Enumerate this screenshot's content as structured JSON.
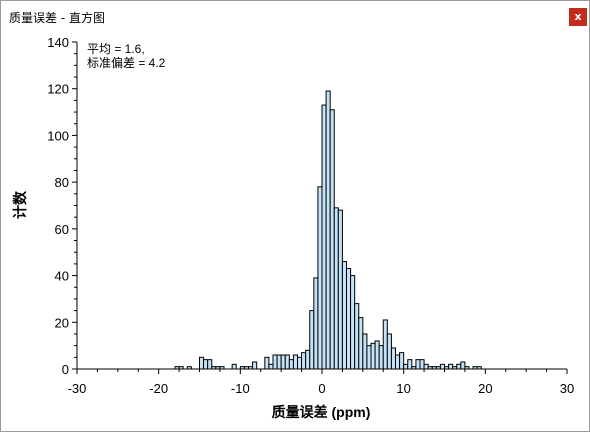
{
  "window": {
    "title": "质量误差 - 直方图",
    "close_label": "x",
    "close_color": "#c42b1c"
  },
  "chart_data": {
    "type": "bar",
    "xlabel": "质量误差 (ppm)",
    "ylabel": "计数",
    "annotation_lines": [
      "平均 = 1.6,",
      "标准偏差 = 4.2"
    ],
    "xlim": [
      -30,
      30
    ],
    "ylim": [
      0,
      140
    ],
    "x_ticks": [
      -30,
      -20,
      -10,
      0,
      10,
      20,
      30
    ],
    "x_tick_labels": [
      "-30",
      "-20",
      "-10",
      "0",
      "10",
      "20",
      "30"
    ],
    "y_ticks": [
      0,
      20,
      40,
      60,
      80,
      100,
      120,
      140
    ],
    "y_tick_labels": [
      "0",
      "20",
      "40",
      "60",
      "80",
      "100",
      "120",
      "140"
    ],
    "bin_width": 0.5,
    "bar_fill": "#c5e3f7",
    "bar_stroke": "#000000",
    "bins": [
      {
        "x": -18,
        "count": 1
      },
      {
        "x": -17.5,
        "count": 1
      },
      {
        "x": -16.5,
        "count": 1
      },
      {
        "x": -15,
        "count": 5
      },
      {
        "x": -14.5,
        "count": 4
      },
      {
        "x": -14,
        "count": 4
      },
      {
        "x": -13.5,
        "count": 1
      },
      {
        "x": -13,
        "count": 1
      },
      {
        "x": -12.5,
        "count": 1
      },
      {
        "x": -11,
        "count": 2
      },
      {
        "x": -10,
        "count": 1
      },
      {
        "x": -9.5,
        "count": 1
      },
      {
        "x": -9,
        "count": 1
      },
      {
        "x": -8.5,
        "count": 3
      },
      {
        "x": -7,
        "count": 5
      },
      {
        "x": -6.5,
        "count": 2
      },
      {
        "x": -6,
        "count": 6
      },
      {
        "x": -5.5,
        "count": 6
      },
      {
        "x": -5,
        "count": 6
      },
      {
        "x": -4.5,
        "count": 6
      },
      {
        "x": -4,
        "count": 4
      },
      {
        "x": -3.5,
        "count": 6
      },
      {
        "x": -3,
        "count": 5
      },
      {
        "x": -2.5,
        "count": 7
      },
      {
        "x": -2,
        "count": 8
      },
      {
        "x": -1.5,
        "count": 25
      },
      {
        "x": -1,
        "count": 39
      },
      {
        "x": -0.5,
        "count": 78
      },
      {
        "x": 0,
        "count": 113
      },
      {
        "x": 0.5,
        "count": 119
      },
      {
        "x": 1,
        "count": 111
      },
      {
        "x": 1.5,
        "count": 69
      },
      {
        "x": 2,
        "count": 68
      },
      {
        "x": 2.5,
        "count": 46
      },
      {
        "x": 3,
        "count": 43
      },
      {
        "x": 3.5,
        "count": 40
      },
      {
        "x": 4,
        "count": 28
      },
      {
        "x": 4.5,
        "count": 22
      },
      {
        "x": 5,
        "count": 15
      },
      {
        "x": 5.5,
        "count": 10
      },
      {
        "x": 6,
        "count": 11
      },
      {
        "x": 6.5,
        "count": 12
      },
      {
        "x": 7,
        "count": 10
      },
      {
        "x": 7.5,
        "count": 21
      },
      {
        "x": 8,
        "count": 15
      },
      {
        "x": 8.5,
        "count": 9
      },
      {
        "x": 9,
        "count": 6
      },
      {
        "x": 9.5,
        "count": 7
      },
      {
        "x": 10,
        "count": 2
      },
      {
        "x": 10.5,
        "count": 4
      },
      {
        "x": 11,
        "count": 1
      },
      {
        "x": 11.5,
        "count": 4
      },
      {
        "x": 12,
        "count": 4
      },
      {
        "x": 12.5,
        "count": 2
      },
      {
        "x": 13,
        "count": 1
      },
      {
        "x": 13.5,
        "count": 1
      },
      {
        "x": 14,
        "count": 1
      },
      {
        "x": 14.5,
        "count": 2
      },
      {
        "x": 15,
        "count": 1
      },
      {
        "x": 15.5,
        "count": 2
      },
      {
        "x": 16,
        "count": 1
      },
      {
        "x": 16.5,
        "count": 2
      },
      {
        "x": 17,
        "count": 3
      },
      {
        "x": 17.5,
        "count": 1
      },
      {
        "x": 18.5,
        "count": 1
      },
      {
        "x": 19,
        "count": 1
      }
    ]
  }
}
